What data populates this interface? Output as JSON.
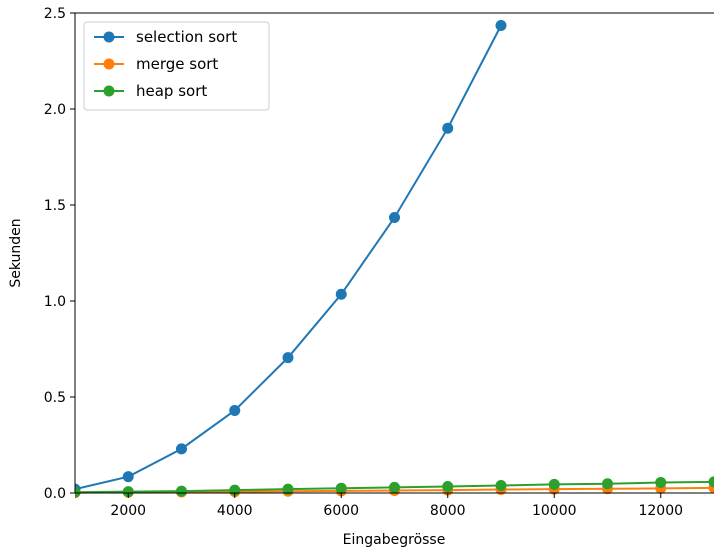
{
  "chart_data": {
    "type": "line",
    "title": "",
    "xlabel": "Eingabegrösse",
    "ylabel": "Sekunden",
    "xlim": [
      1000,
      13000
    ],
    "ylim": [
      0,
      2.5
    ],
    "xticks": [
      2000,
      4000,
      6000,
      8000,
      10000,
      12000
    ],
    "xtick_labels": [
      "2000",
      "4000",
      "6000",
      "8000",
      "10000",
      "12000"
    ],
    "yticks": [
      0.0,
      0.5,
      1.0,
      1.5,
      2.0,
      2.5
    ],
    "ytick_labels": [
      "0.0",
      "0.5",
      "1.0",
      "1.5",
      "2.0",
      "2.5"
    ],
    "grid": false,
    "legend_position": "top-left",
    "series": [
      {
        "name": "selection sort",
        "color": "#1f77b4",
        "x": [
          1000,
          2000,
          3000,
          4000,
          5000,
          6000,
          7000,
          8000,
          9000
        ],
        "values": [
          0.02,
          0.085,
          0.23,
          0.43,
          0.705,
          1.035,
          1.435,
          1.9,
          2.435
        ]
      },
      {
        "name": "merge sort",
        "color": "#ff7f0e",
        "x": [
          1000,
          2000,
          3000,
          4000,
          5000,
          6000,
          7000,
          8000,
          9000,
          10000,
          11000,
          12000,
          13000
        ],
        "values": [
          0.002,
          0.004,
          0.005,
          0.007,
          0.009,
          0.011,
          0.013,
          0.015,
          0.018,
          0.02,
          0.022,
          0.024,
          0.027
        ]
      },
      {
        "name": "heap sort",
        "color": "#2ca02c",
        "x": [
          1000,
          2000,
          3000,
          4000,
          5000,
          6000,
          7000,
          8000,
          9000,
          10000,
          11000,
          12000,
          13000
        ],
        "values": [
          0.004,
          0.007,
          0.01,
          0.015,
          0.02,
          0.025,
          0.029,
          0.034,
          0.039,
          0.045,
          0.048,
          0.055,
          0.058
        ]
      }
    ]
  }
}
